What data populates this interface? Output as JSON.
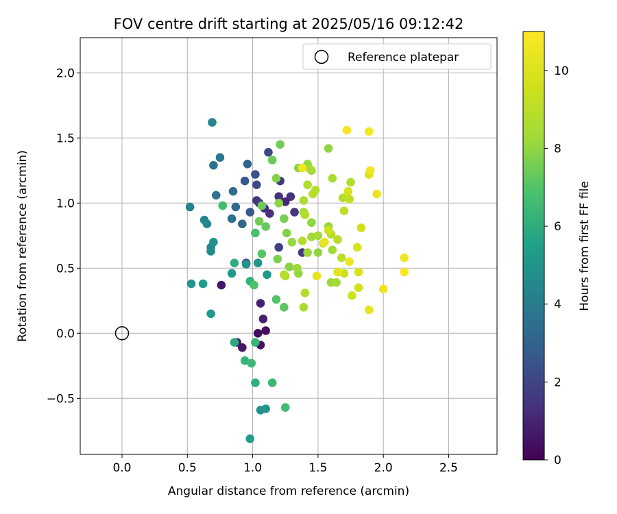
{
  "chart_data": {
    "type": "scatter",
    "title": "FOV centre drift starting at 2025/05/16 09:12:42",
    "xlabel": "Angular distance from reference (arcmin)",
    "ylabel": "Rotation from reference (arcmin)",
    "xlim": [
      -0.32,
      2.87
    ],
    "ylim": [
      -0.93,
      2.27
    ],
    "x_ticks": [
      0.0,
      0.5,
      1.0,
      1.5,
      2.0,
      2.5
    ],
    "x_tick_labels": [
      "0.0",
      "0.5",
      "1.0",
      "1.5",
      "2.0",
      "2.5"
    ],
    "y_ticks": [
      -0.5,
      0.0,
      0.5,
      1.0,
      1.5,
      2.0
    ],
    "y_tick_labels": [
      "−0.5",
      "0.0",
      "0.5",
      "1.0",
      "1.5",
      "2.0"
    ],
    "grid": true,
    "legend": {
      "placement": "top-right",
      "entries": [
        {
          "label": "Reference platepar",
          "marker": "open-circle"
        }
      ]
    },
    "reference_point": {
      "x": 0.0,
      "y": 0.0
    },
    "colorbar": {
      "label": "Hours from first FF file",
      "min": 0,
      "max": 11,
      "ticks": [
        0,
        2,
        4,
        6,
        8,
        10
      ],
      "colormap": "viridis"
    },
    "points": [
      {
        "x": 1.04,
        "y": 0.0,
        "h": 0.3
      },
      {
        "x": 1.1,
        "y": 0.02,
        "h": 0.4
      },
      {
        "x": 1.06,
        "y": -0.09,
        "h": 0.5
      },
      {
        "x": 0.88,
        "y": -0.07,
        "h": 0.7
      },
      {
        "x": 0.92,
        "y": -0.11,
        "h": 0.6
      },
      {
        "x": 1.08,
        "y": 0.11,
        "h": 0.8
      },
      {
        "x": 1.06,
        "y": 0.23,
        "h": 0.9
      },
      {
        "x": 0.76,
        "y": 0.37,
        "h": 0.6
      },
      {
        "x": 1.05,
        "y": 1.0,
        "h": 1.0
      },
      {
        "x": 1.09,
        "y": 0.96,
        "h": 1.2
      },
      {
        "x": 1.13,
        "y": 0.92,
        "h": 1.3
      },
      {
        "x": 1.2,
        "y": 1.05,
        "h": 1.3
      },
      {
        "x": 1.29,
        "y": 1.05,
        "h": 1.4
      },
      {
        "x": 1.25,
        "y": 1.01,
        "h": 1.1
      },
      {
        "x": 1.32,
        "y": 0.93,
        "h": 1.5
      },
      {
        "x": 1.38,
        "y": 0.62,
        "h": 1.6
      },
      {
        "x": 1.2,
        "y": 0.66,
        "h": 1.8
      },
      {
        "x": 1.03,
        "y": 1.02,
        "h": 1.5
      },
      {
        "x": 1.21,
        "y": 1.17,
        "h": 1.6
      },
      {
        "x": 1.12,
        "y": 1.39,
        "h": 2.0
      },
      {
        "x": 0.95,
        "y": 0.54,
        "h": 2.1
      },
      {
        "x": 1.02,
        "y": 1.22,
        "h": 2.4
      },
      {
        "x": 1.03,
        "y": 1.14,
        "h": 2.2
      },
      {
        "x": 0.94,
        "y": 1.17,
        "h": 2.7
      },
      {
        "x": 0.98,
        "y": 0.93,
        "h": 2.6
      },
      {
        "x": 0.96,
        "y": 1.3,
        "h": 3.0
      },
      {
        "x": 0.92,
        "y": 0.84,
        "h": 3.1
      },
      {
        "x": 0.84,
        "y": 0.88,
        "h": 3.5
      },
      {
        "x": 0.87,
        "y": 0.97,
        "h": 3.3
      },
      {
        "x": 0.72,
        "y": 1.06,
        "h": 3.6
      },
      {
        "x": 0.7,
        "y": 1.29,
        "h": 3.7
      },
      {
        "x": 0.75,
        "y": 1.35,
        "h": 3.8
      },
      {
        "x": 0.85,
        "y": 1.09,
        "h": 3.4
      },
      {
        "x": 0.52,
        "y": 0.97,
        "h": 4.2
      },
      {
        "x": 0.63,
        "y": 0.87,
        "h": 4.3
      },
      {
        "x": 0.65,
        "y": 0.84,
        "h": 4.5
      },
      {
        "x": 0.69,
        "y": 1.62,
        "h": 4.4
      },
      {
        "x": 0.68,
        "y": 0.66,
        "h": 4.4
      },
      {
        "x": 0.68,
        "y": 0.63,
        "h": 4.6
      },
      {
        "x": 0.7,
        "y": 0.7,
        "h": 4.8
      },
      {
        "x": 0.53,
        "y": 0.38,
        "h": 5.0
      },
      {
        "x": 0.62,
        "y": 0.38,
        "h": 5.3
      },
      {
        "x": 0.68,
        "y": 0.15,
        "h": 5.2
      },
      {
        "x": 0.84,
        "y": 0.46,
        "h": 5.2
      },
      {
        "x": 0.95,
        "y": 0.53,
        "h": 4.9
      },
      {
        "x": 1.04,
        "y": 0.54,
        "h": 5.0
      },
      {
        "x": 1.11,
        "y": 0.45,
        "h": 5.2
      },
      {
        "x": 1.06,
        "y": -0.59,
        "h": 4.8
      },
      {
        "x": 1.1,
        "y": -0.58,
        "h": 5.1
      },
      {
        "x": 0.98,
        "y": -0.81,
        "h": 5.3
      },
      {
        "x": 0.86,
        "y": 0.54,
        "h": 6.0
      },
      {
        "x": 0.98,
        "y": 0.4,
        "h": 6.2
      },
      {
        "x": 0.86,
        "y": -0.07,
        "h": 5.9
      },
      {
        "x": 0.94,
        "y": -0.21,
        "h": 6.3
      },
      {
        "x": 0.99,
        "y": -0.23,
        "h": 6.5
      },
      {
        "x": 1.02,
        "y": -0.38,
        "h": 6.1
      },
      {
        "x": 1.15,
        "y": -0.38,
        "h": 6.4
      },
      {
        "x": 1.25,
        "y": -0.57,
        "h": 6.6
      },
      {
        "x": 1.02,
        "y": -0.07,
        "h": 6.3
      },
      {
        "x": 1.01,
        "y": 0.37,
        "h": 6.9
      },
      {
        "x": 1.18,
        "y": 0.26,
        "h": 7.0
      },
      {
        "x": 1.24,
        "y": 0.2,
        "h": 7.2
      },
      {
        "x": 1.02,
        "y": 0.77,
        "h": 6.8
      },
      {
        "x": 1.07,
        "y": 0.61,
        "h": 7.1
      },
      {
        "x": 1.1,
        "y": 0.82,
        "h": 7.3
      },
      {
        "x": 1.05,
        "y": 0.86,
        "h": 7.5
      },
      {
        "x": 1.07,
        "y": 0.98,
        "h": 7.4
      },
      {
        "x": 0.77,
        "y": 0.98,
        "h": 6.7
      },
      {
        "x": 1.15,
        "y": 1.33,
        "h": 7.4
      },
      {
        "x": 1.21,
        "y": 1.45,
        "h": 7.5
      },
      {
        "x": 1.18,
        "y": 1.19,
        "h": 7.8
      },
      {
        "x": 1.2,
        "y": 1.0,
        "h": 7.9
      },
      {
        "x": 1.19,
        "y": 0.57,
        "h": 7.7
      },
      {
        "x": 1.24,
        "y": 0.88,
        "h": 7.6
      },
      {
        "x": 1.26,
        "y": 0.77,
        "h": 7.8
      },
      {
        "x": 1.28,
        "y": 0.51,
        "h": 7.9
      },
      {
        "x": 1.3,
        "y": 0.7,
        "h": 8.1
      },
      {
        "x": 1.35,
        "y": 0.46,
        "h": 8.0
      },
      {
        "x": 1.34,
        "y": 0.5,
        "h": 8.2
      },
      {
        "x": 1.35,
        "y": 1.27,
        "h": 7.9
      },
      {
        "x": 1.42,
        "y": 1.3,
        "h": 8.1
      },
      {
        "x": 1.45,
        "y": 1.25,
        "h": 8.3
      },
      {
        "x": 1.45,
        "y": 0.85,
        "h": 8.0
      },
      {
        "x": 1.42,
        "y": 0.62,
        "h": 8.2
      },
      {
        "x": 1.39,
        "y": 0.93,
        "h": 8.3
      },
      {
        "x": 1.45,
        "y": 0.74,
        "h": 8.4
      },
      {
        "x": 1.5,
        "y": 0.62,
        "h": 8.0
      },
      {
        "x": 1.5,
        "y": 0.75,
        "h": 8.4
      },
      {
        "x": 1.58,
        "y": 1.42,
        "h": 8.0
      },
      {
        "x": 1.58,
        "y": 0.82,
        "h": 8.1
      },
      {
        "x": 1.61,
        "y": 0.64,
        "h": 8.3
      },
      {
        "x": 1.6,
        "y": 0.39,
        "h": 8.2
      },
      {
        "x": 1.64,
        "y": 0.39,
        "h": 8.4
      },
      {
        "x": 1.39,
        "y": 0.2,
        "h": 8.6
      },
      {
        "x": 1.4,
        "y": 0.31,
        "h": 8.8
      },
      {
        "x": 1.25,
        "y": 0.44,
        "h": 8.7
      },
      {
        "x": 1.24,
        "y": 0.45,
        "h": 8.9
      },
      {
        "x": 1.38,
        "y": 0.71,
        "h": 8.8
      },
      {
        "x": 1.39,
        "y": 1.02,
        "h": 8.6
      },
      {
        "x": 1.4,
        "y": 0.91,
        "h": 8.8
      },
      {
        "x": 1.42,
        "y": 1.14,
        "h": 8.7
      },
      {
        "x": 1.46,
        "y": 1.07,
        "h": 9.0
      },
      {
        "x": 1.48,
        "y": 1.1,
        "h": 8.9
      },
      {
        "x": 1.44,
        "y": 1.26,
        "h": 8.5
      },
      {
        "x": 1.61,
        "y": 1.19,
        "h": 8.6
      },
      {
        "x": 1.6,
        "y": 0.76,
        "h": 8.8
      },
      {
        "x": 1.65,
        "y": 0.72,
        "h": 8.9
      },
      {
        "x": 1.68,
        "y": 0.58,
        "h": 9.0
      },
      {
        "x": 1.69,
        "y": 1.04,
        "h": 8.9
      },
      {
        "x": 1.7,
        "y": 0.94,
        "h": 9.1
      },
      {
        "x": 1.74,
        "y": 1.03,
        "h": 9.2
      },
      {
        "x": 1.75,
        "y": 1.16,
        "h": 8.8
      },
      {
        "x": 1.54,
        "y": 0.69,
        "h": 9.5
      },
      {
        "x": 1.58,
        "y": 0.79,
        "h": 9.6
      },
      {
        "x": 1.7,
        "y": 0.46,
        "h": 9.5
      },
      {
        "x": 1.73,
        "y": 1.09,
        "h": 9.8
      },
      {
        "x": 1.76,
        "y": 0.29,
        "h": 9.6
      },
      {
        "x": 1.8,
        "y": 0.66,
        "h": 9.8
      },
      {
        "x": 1.81,
        "y": 0.35,
        "h": 9.7
      },
      {
        "x": 1.81,
        "y": 0.47,
        "h": 9.9
      },
      {
        "x": 1.83,
        "y": 0.81,
        "h": 9.6
      },
      {
        "x": 1.89,
        "y": 1.22,
        "h": 9.9
      },
      {
        "x": 1.38,
        "y": 1.27,
        "h": 10.6
      },
      {
        "x": 1.49,
        "y": 0.44,
        "h": 10.3
      },
      {
        "x": 1.55,
        "y": 0.7,
        "h": 10.4
      },
      {
        "x": 1.65,
        "y": 0.47,
        "h": 10.2
      },
      {
        "x": 1.74,
        "y": 0.55,
        "h": 10.5
      },
      {
        "x": 1.72,
        "y": 1.56,
        "h": 10.8
      },
      {
        "x": 1.89,
        "y": 1.55,
        "h": 10.7
      },
      {
        "x": 1.9,
        "y": 1.25,
        "h": 10.6
      },
      {
        "x": 1.89,
        "y": 0.18,
        "h": 10.4
      },
      {
        "x": 1.95,
        "y": 1.07,
        "h": 10.5
      },
      {
        "x": 2.0,
        "y": 0.34,
        "h": 10.5
      },
      {
        "x": 2.16,
        "y": 0.58,
        "h": 10.6
      },
      {
        "x": 2.16,
        "y": 0.47,
        "h": 10.8
      }
    ]
  }
}
